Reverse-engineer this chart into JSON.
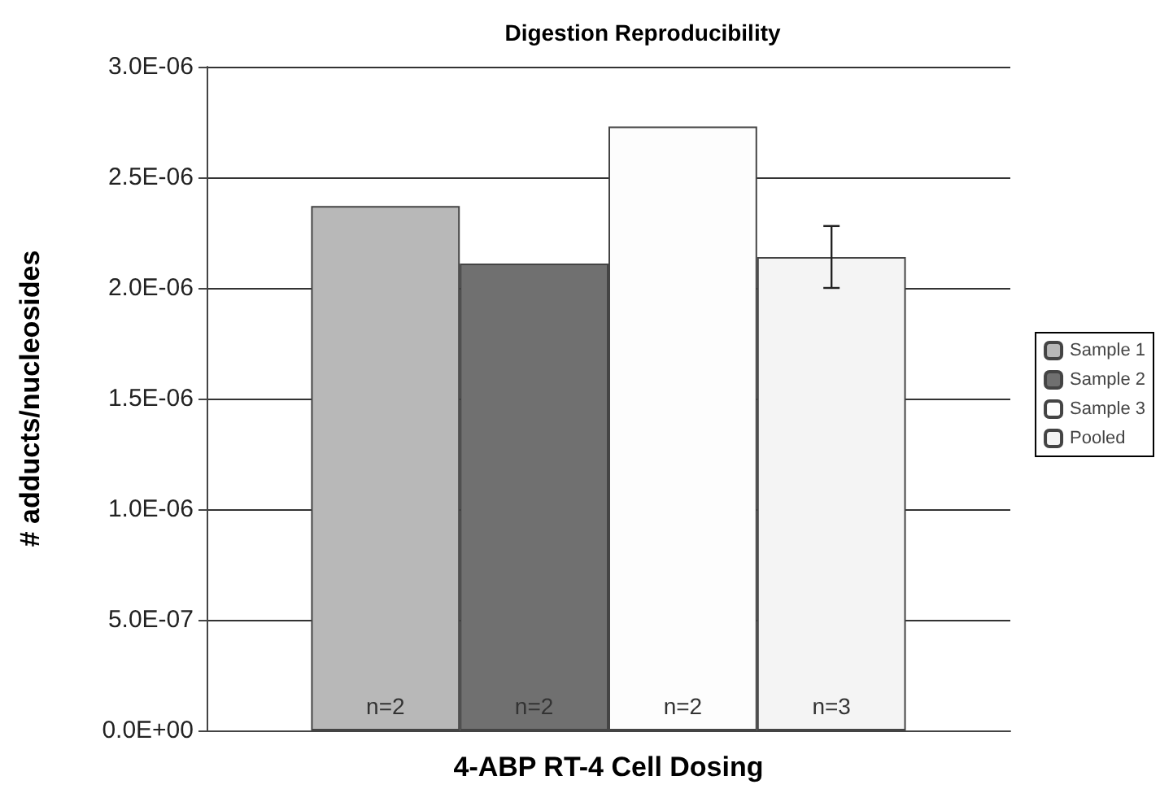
{
  "chart_data": {
    "type": "bar",
    "title": "Digestion Reproducibility",
    "xlabel": "4-ABP RT-4 Cell Dosing",
    "ylabel": "# adducts/nucleosides",
    "categories": [
      null
    ],
    "series": [
      {
        "name": "Sample 1",
        "color": "#b8b8b8",
        "values": [
          2.37e-06
        ]
      },
      {
        "name": "Sample 2",
        "color": "#707070",
        "values": [
          2.11e-06
        ]
      },
      {
        "name": "Sample 3",
        "color": "#fdfdfd",
        "values": [
          2.73e-06
        ]
      },
      {
        "name": "Pooled",
        "color": "#f4f4f4",
        "values": [
          2.14e-06
        ],
        "errors": [
          [
            2e-06,
            2.28e-06
          ]
        ]
      }
    ],
    "annotations": [
      "n=2",
      "n=2",
      "n=2",
      "n=3"
    ],
    "ylim": [
      0,
      3e-06
    ],
    "yticks": [
      {
        "value": 0,
        "label": "0.0E+00"
      },
      {
        "value": 5e-07,
        "label": "5.0E-07"
      },
      {
        "value": 1e-06,
        "label": "1.0E-06"
      },
      {
        "value": 1.5e-06,
        "label": "1.5E-06"
      },
      {
        "value": 2e-06,
        "label": "2.0E-06"
      },
      {
        "value": 2.5e-06,
        "label": "2.5E-06"
      },
      {
        "value": 3e-06,
        "label": "3.0E-06"
      }
    ],
    "grid": "y",
    "legend": "right"
  }
}
